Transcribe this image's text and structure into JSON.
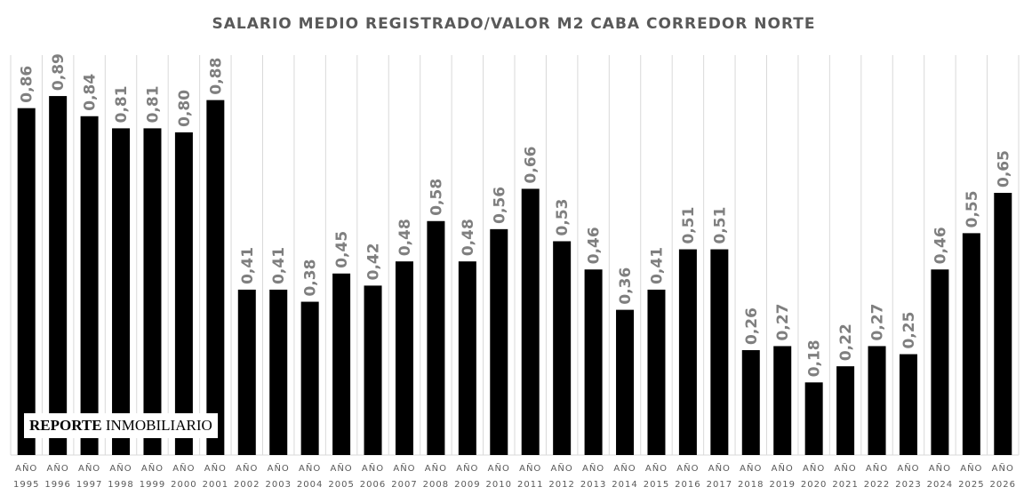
{
  "chart_data": {
    "type": "bar",
    "title": "SALARIO MEDIO REGISTRADO/VALOR M2 CABA CORREDOR NORTE",
    "xlabel": "",
    "ylabel": "",
    "ylim": [
      0,
      0.91
    ],
    "grid": "vertical",
    "bar_color": "#000000",
    "categories": [
      {
        "line1": "AÑO",
        "line2": "1995"
      },
      {
        "line1": "AÑO",
        "line2": "1996"
      },
      {
        "line1": "AÑO",
        "line2": "1997"
      },
      {
        "line1": "AÑO",
        "line2": "1998"
      },
      {
        "line1": "AÑO",
        "line2": "1999"
      },
      {
        "line1": "AÑO",
        "line2": "2000"
      },
      {
        "line1": "AÑO",
        "line2": "2001"
      },
      {
        "line1": "AÑO",
        "line2": "2002"
      },
      {
        "line1": "AÑO",
        "line2": "2003"
      },
      {
        "line1": "AÑO",
        "line2": "2004"
      },
      {
        "line1": "AÑO",
        "line2": "2005"
      },
      {
        "line1": "AÑO",
        "line2": "2006"
      },
      {
        "line1": "AÑO",
        "line2": "2007"
      },
      {
        "line1": "AÑO",
        "line2": "2008"
      },
      {
        "line1": "AÑO",
        "line2": "2009"
      },
      {
        "line1": "AÑO",
        "line2": "2010"
      },
      {
        "line1": "AÑO",
        "line2": "2011"
      },
      {
        "line1": "AÑO",
        "line2": "2012"
      },
      {
        "line1": "AÑO",
        "line2": "2013"
      },
      {
        "line1": "AÑO",
        "line2": "2014"
      },
      {
        "line1": "AÑO",
        "line2": "2015"
      },
      {
        "line1": "AÑO",
        "line2": "2016"
      },
      {
        "line1": "AÑO",
        "line2": "2017"
      },
      {
        "line1": "AÑO",
        "line2": "2018"
      },
      {
        "line1": "AÑO",
        "line2": "2019"
      },
      {
        "line1": "AÑO",
        "line2": "2020"
      },
      {
        "line1": "AÑO",
        "line2": "2021"
      },
      {
        "line1": "AÑO",
        "line2": "2022"
      },
      {
        "line1": "AÑO",
        "line2": "2023"
      },
      {
        "line1": "AÑO",
        "line2": "2024"
      },
      {
        "line1": "AÑO",
        "line2": "2025"
      },
      {
        "line1": "AÑO",
        "line2": "2026"
      }
    ],
    "values": [
      0.86,
      0.89,
      0.84,
      0.81,
      0.81,
      0.8,
      0.88,
      0.41,
      0.41,
      0.38,
      0.45,
      0.42,
      0.48,
      0.58,
      0.48,
      0.56,
      0.66,
      0.53,
      0.46,
      0.36,
      0.41,
      0.51,
      0.51,
      0.26,
      0.27,
      0.18,
      0.22,
      0.27,
      0.25,
      0.46,
      0.55,
      0.65
    ],
    "value_labels": [
      "0,86",
      "0,89",
      "0,84",
      "0,81",
      "0,81",
      "0,80",
      "0,88",
      "0,41",
      "0,41",
      "0,38",
      "0,45",
      "0,42",
      "0,48",
      "0,58",
      "0,48",
      "0,56",
      "0,66",
      "0,53",
      "0,46",
      "0,36",
      "0,41",
      "0,51",
      "0,51",
      "0,26",
      "0,27",
      "0,18",
      "0,22",
      "0,27",
      "0,25",
      "0,46",
      "0,55",
      "0,65"
    ]
  },
  "watermark": {
    "bold": "REPORTE",
    "regular": " INMOBILIARIO"
  }
}
